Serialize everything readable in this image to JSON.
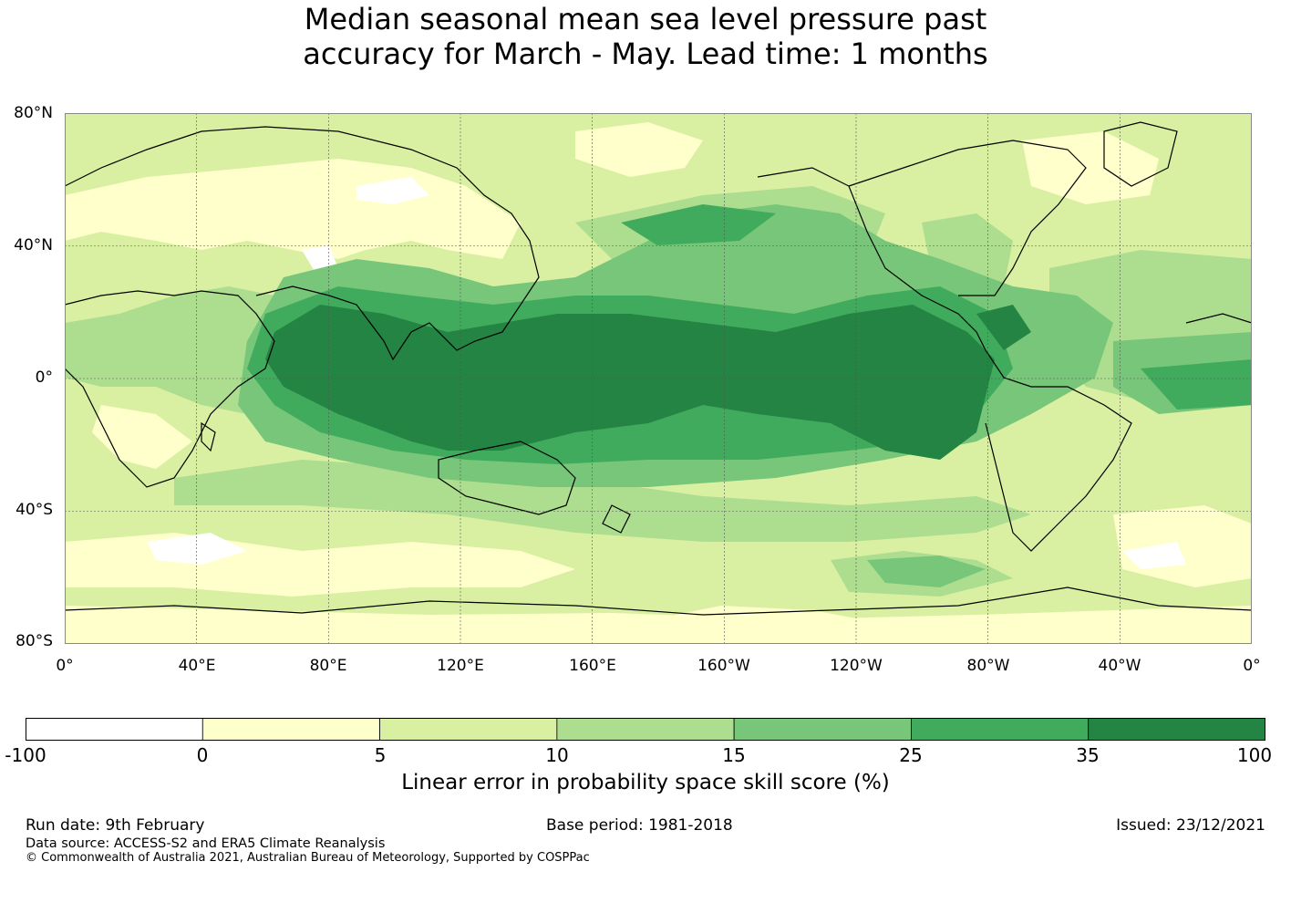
{
  "title_line1": "Median seasonal mean sea level pressure past",
  "title_line2": "accuracy for March - May. Lead time: 1 months",
  "map": {
    "lat_labels": [
      "80°N",
      "40°N",
      "0°",
      "40°S",
      "80°S"
    ],
    "lon_labels": [
      "0°",
      "40°E",
      "80°E",
      "120°E",
      "160°E",
      "160°W",
      "120°W",
      "80°W",
      "40°W",
      "0°"
    ]
  },
  "colorbar": {
    "boundaries": [
      "-100",
      "0",
      "5",
      "10",
      "15",
      "25",
      "35",
      "100"
    ],
    "colors": [
      "#ffffff",
      "#ffffcc",
      "#d9f0a3",
      "#addd8e",
      "#78c679",
      "#41ab5d",
      "#238443"
    ],
    "label": "Linear error in probability space skill score (%)"
  },
  "footer": {
    "run_date": "Run date: 9th February",
    "base_period": "Base period: 1981-2018",
    "issued": "Issued: 23/12/2021",
    "data_source": "Data source: ACCESS-S2 and ERA5 Climate Reanalysis",
    "copyright": "© Commonwealth of Australia 2021, Australian Bureau of Meteorology, Supported by COSPPac"
  }
}
